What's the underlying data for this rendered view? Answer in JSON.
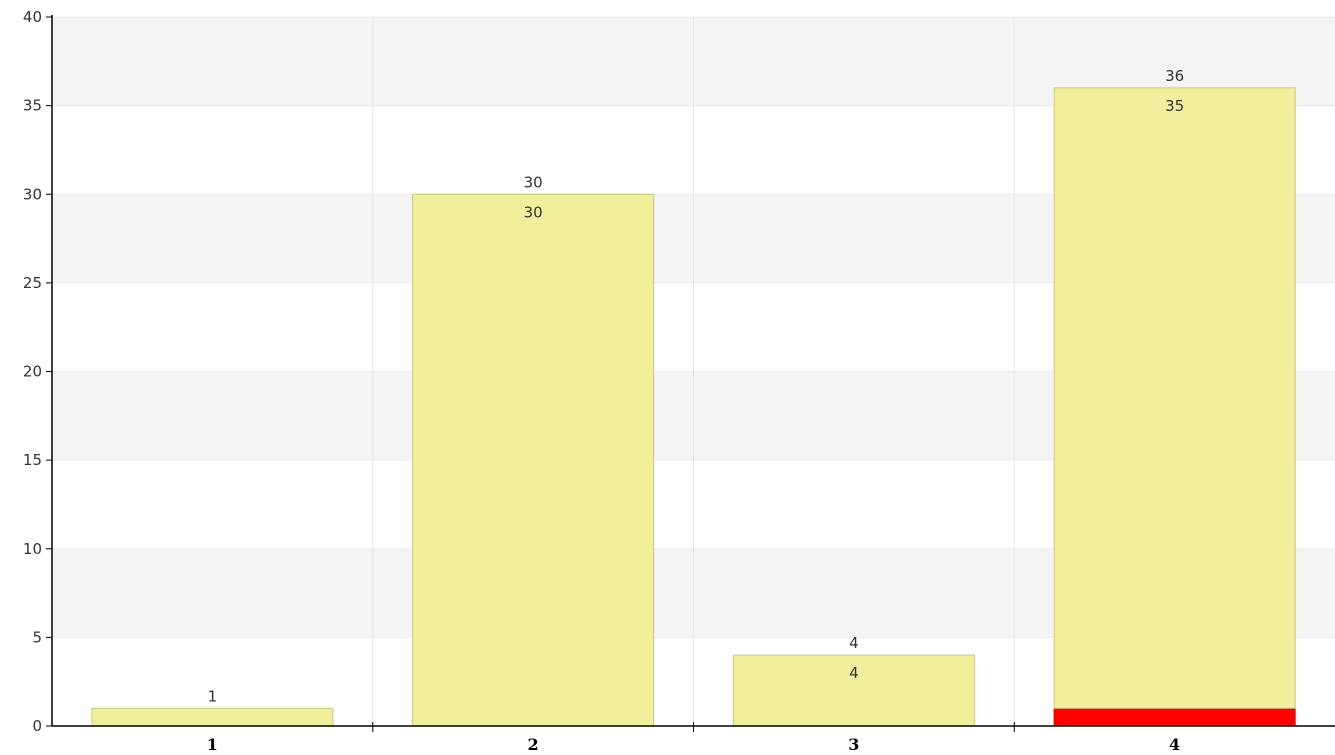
{
  "chart_data": {
    "type": "bar",
    "stacked": true,
    "categories": [
      "1",
      "2",
      "3",
      "4"
    ],
    "series": [
      {
        "values": [
          0,
          0,
          0,
          1
        ],
        "color": "#ff0000"
      },
      {
        "values": [
          1,
          30,
          4,
          35
        ],
        "color": "#f0f09c"
      }
    ],
    "totals": [
      1,
      30,
      4,
      36
    ],
    "segment_labels": [
      "",
      "30",
      "4",
      "35"
    ],
    "ylim": [
      0,
      40
    ],
    "yticks": [
      0,
      5,
      10,
      15,
      20,
      25,
      30,
      35,
      40
    ],
    "grid": true,
    "band_color": "#f4f4f4",
    "xlabel": "",
    "ylabel": "",
    "title": ""
  }
}
